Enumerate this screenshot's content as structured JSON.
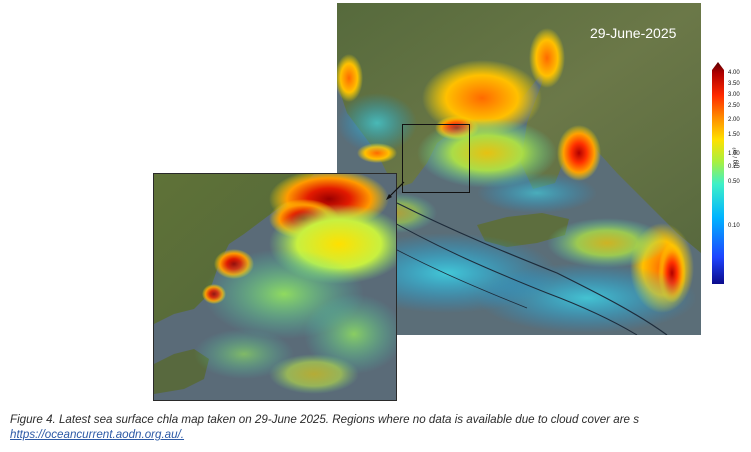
{
  "figure": {
    "date_label": "29-June-2025",
    "colorbar": {
      "unit": "mg / m³",
      "ticks": [
        "4.00",
        "3.50",
        "3.00",
        "2.50",
        "2.00",
        "1.50",
        "1.00",
        "0.75",
        "0.50",
        "0.10"
      ],
      "colors": [
        "#0b0b8c",
        "#1e44ff",
        "#00b4ff",
        "#3ef0c8",
        "#a8f040",
        "#ffe000",
        "#ff8c00",
        "#ff2a00",
        "#b00000",
        "#5a0000"
      ]
    },
    "colors": {
      "land": "#5d6f3c",
      "water_no_data": "#5b6e78",
      "low_chla": "#00b4ff",
      "high_chla": "#d51000"
    }
  },
  "caption": {
    "text": "Figure 4. Latest sea surface chla map taken on 29-June 2025. Regions where no data is available due to cloud cover are s",
    "link": "https://oceancurrent.aodn.org.au/."
  }
}
